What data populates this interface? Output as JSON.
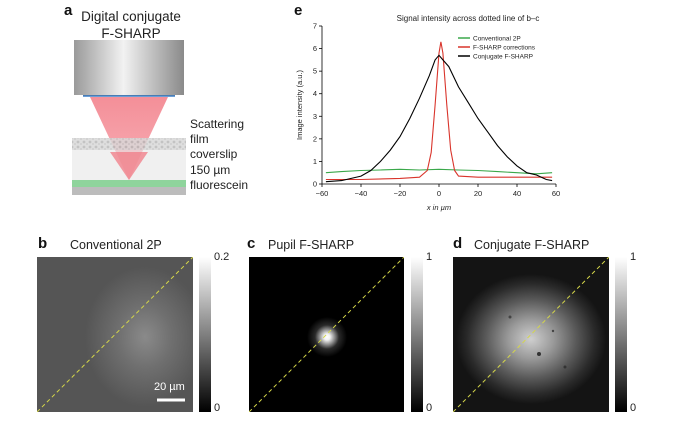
{
  "panel_a": {
    "letter": "a",
    "title_line1": "Digital conjugate",
    "title_line2": "F-SHARP",
    "labels": {
      "scattering": "Scattering",
      "film": "film",
      "coverslip": "coverslip",
      "thickness": "150 µm",
      "fluorescein": "fluorescein"
    }
  },
  "panel_e": {
    "letter": "e",
    "chart_data": {
      "type": "line",
      "title": "Signal intensity across dotted line of b–c",
      "xlabel": "x in µm",
      "ylabel": "Image intensity (a.u.)",
      "xlim": [
        -60,
        60
      ],
      "ylim": [
        0,
        7
      ],
      "xticks": [
        -60,
        -40,
        -20,
        0,
        20,
        40,
        60
      ],
      "yticks": [
        0,
        1,
        2,
        3,
        4,
        5,
        6,
        7
      ],
      "legend_position": "top-right",
      "series": [
        {
          "name": "Conventional 2P",
          "color": "#3aa84a",
          "x": [
            -58,
            -50,
            -40,
            -30,
            -20,
            -10,
            0,
            10,
            20,
            30,
            40,
            50,
            58
          ],
          "y": [
            0.5,
            0.55,
            0.6,
            0.62,
            0.65,
            0.62,
            0.65,
            0.62,
            0.6,
            0.55,
            0.5,
            0.45,
            0.5
          ]
        },
        {
          "name": "F-SHARP corrections",
          "color": "#d9342b",
          "x": [
            -58,
            -40,
            -20,
            -10,
            -6,
            -4,
            -2,
            0,
            1,
            2,
            4,
            6,
            8,
            10,
            20,
            40,
            58
          ],
          "y": [
            0.2,
            0.2,
            0.25,
            0.3,
            0.6,
            1.4,
            3.5,
            5.8,
            6.3,
            5.8,
            3.5,
            1.5,
            0.6,
            0.35,
            0.3,
            0.3,
            0.3
          ]
        },
        {
          "name": "Conjugate F-SHARP",
          "color": "#000000",
          "x": [
            -58,
            -50,
            -40,
            -35,
            -30,
            -25,
            -20,
            -15,
            -10,
            -5,
            -2,
            0,
            2,
            5,
            10,
            15,
            20,
            25,
            30,
            35,
            40,
            45,
            50,
            55,
            58
          ],
          "y": [
            0.1,
            0.15,
            0.35,
            0.6,
            1.0,
            1.5,
            2.1,
            2.9,
            3.8,
            4.8,
            5.5,
            5.7,
            5.5,
            5.2,
            4.3,
            3.6,
            2.9,
            2.3,
            1.7,
            1.2,
            0.8,
            0.5,
            0.4,
            0.2,
            0.15
          ]
        }
      ]
    }
  },
  "panel_b": {
    "letter": "b",
    "title": "Conventional 2P",
    "cbar_max": "0.2",
    "cbar_min": "0",
    "scalebar": "20 µm"
  },
  "panel_c": {
    "letter": "c",
    "title": "Pupil F-SHARP",
    "cbar_max": "1",
    "cbar_min": "0"
  },
  "panel_d": {
    "letter": "d",
    "title": "Conjugate F-SHARP",
    "cbar_max": "1",
    "cbar_min": "0"
  },
  "colors": {
    "dashed_line": "#d4d64a",
    "objective_line": "#3a7ec8",
    "beam": "#f27b86",
    "fluorescein_layer": "#8fd49c"
  }
}
